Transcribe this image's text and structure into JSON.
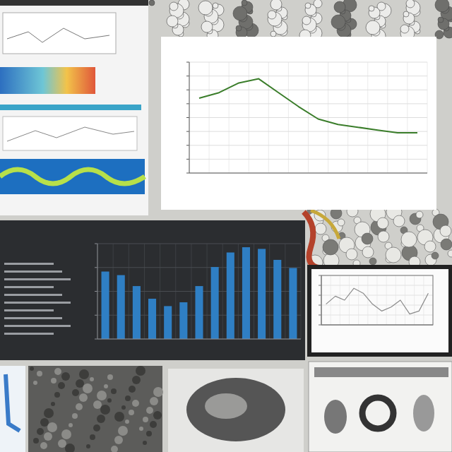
{
  "chart_data": [
    {
      "type": "line",
      "categories": [
        null,
        null,
        null,
        null,
        null,
        null,
        null,
        null,
        null,
        null,
        null,
        null
      ],
      "values": [
        5.4,
        5.8,
        6.5,
        6.8,
        5.8,
        4.8,
        3.9,
        3.5,
        3.3,
        3.1,
        2.9,
        2.9
      ],
      "color": "#3a7d2a",
      "ylim": [
        0,
        8
      ],
      "yticks": [
        0,
        1,
        2,
        3,
        4,
        5,
        6,
        7,
        8
      ],
      "grid": true,
      "tick_labels": false
    },
    {
      "type": "bar",
      "categories": [
        null,
        null,
        null,
        null,
        null,
        null,
        null,
        null,
        null,
        null,
        null,
        null,
        null
      ],
      "values": [
        2.83,
        2.68,
        2.22,
        1.69,
        1.38,
        1.54,
        2.22,
        3.02,
        3.63,
        3.85,
        3.78,
        3.32,
        2.98
      ],
      "color": "#2f7fc4",
      "ylim": [
        0,
        4
      ],
      "yticks": [
        0,
        1,
        2,
        3,
        4
      ],
      "grid": true,
      "tick_labels": false
    },
    {
      "type": "line",
      "categories": [
        null,
        null,
        null,
        null,
        null,
        null,
        null,
        null,
        null,
        null,
        null,
        null
      ],
      "values": [
        2.1,
        2.9,
        2.5,
        3.7,
        3.2,
        2.1,
        1.4,
        1.8,
        2.5,
        1.1,
        1.4,
        3.2
      ],
      "color": "#8a8a8a",
      "ylim": [
        0,
        5
      ],
      "yticks": [
        0,
        1,
        2,
        3,
        4,
        5
      ],
      "grid": true,
      "tick_labels": false
    }
  ]
}
